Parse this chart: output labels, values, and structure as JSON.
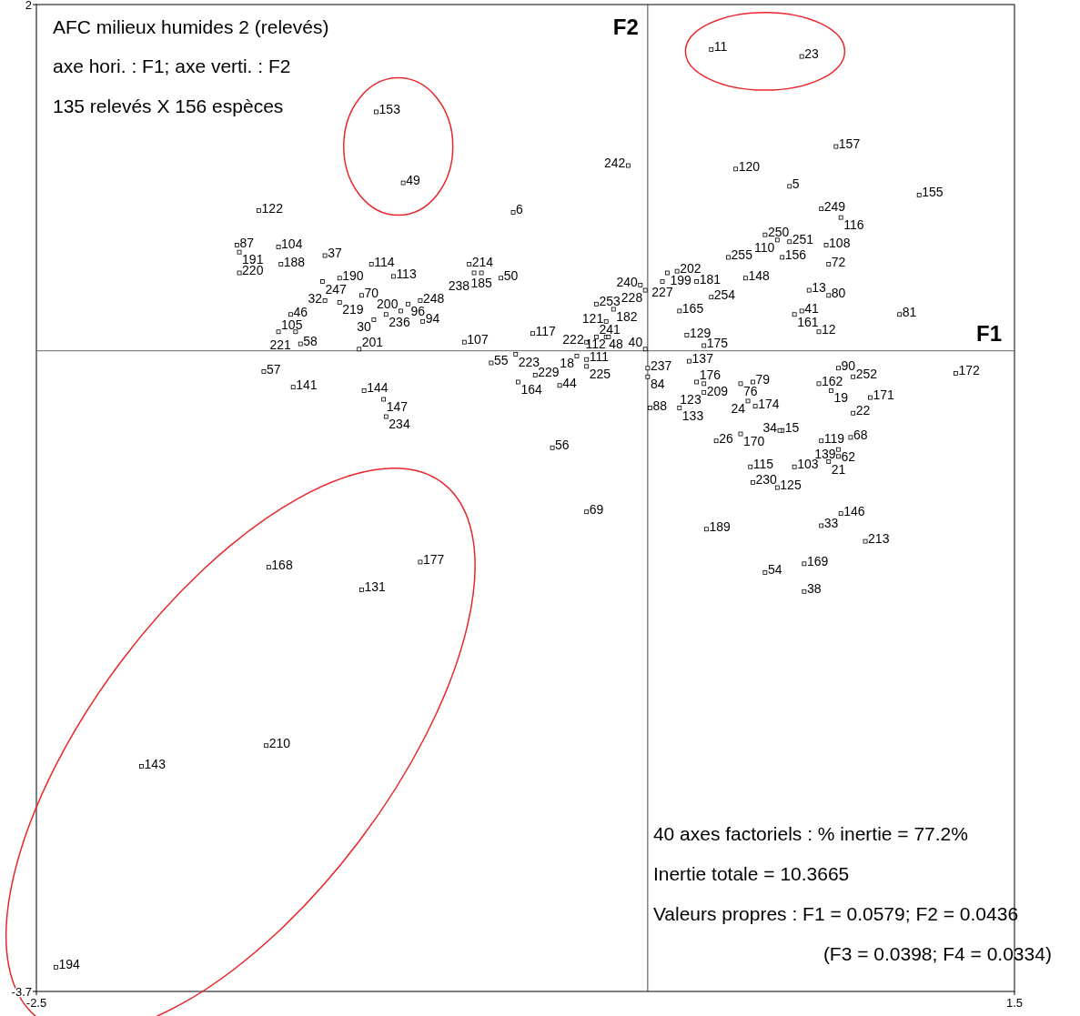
{
  "chart_data": {
    "type": "scatter",
    "title": "AFC milieux humides 2 (relevés)",
    "subtitle": "axe hori. : F1; axe verti. : F2",
    "xlim": [
      -2.5,
      1.5
    ],
    "ylim": [
      -3.7,
      2
    ],
    "xticks": [
      -2.5,
      1.5
    ],
    "yticks": [
      -3.7,
      2
    ],
    "marker": "square",
    "grid": false,
    "ref_lines": [
      {
        "axis": "x",
        "value": 0,
        "color": "#444444"
      },
      {
        "axis": "y",
        "value": 0,
        "color": "#666666"
      }
    ],
    "series": [
      {
        "color": "#000000",
        "x": [
          -1.11,
          -1.0,
          -1.59,
          -0.55,
          -0.08,
          0.26,
          0.63,
          0.77,
          0.36,
          0.58,
          1.11,
          0.71,
          0.79,
          0.48,
          0.53,
          0.58,
          0.73,
          0.33,
          0.55,
          0.74,
          0.4,
          0.08,
          0.12,
          0.06,
          0.2,
          -0.01,
          -0.03,
          0.26,
          0.13,
          0.66,
          0.74,
          0.63,
          0.6,
          0.7,
          1.03,
          0.16,
          0.23,
          -0.01,
          -0.21,
          -0.14,
          -0.21,
          -0.17,
          -0.25,
          -0.17,
          -0.16,
          -0.29,
          -0.25,
          -0.25,
          -0.47,
          -0.54,
          -0.46,
          -0.36,
          -0.64,
          -0.53,
          -0.75,
          -0.73,
          -0.68,
          -0.71,
          -0.6,
          -1.68,
          -1.67,
          -1.67,
          -1.51,
          -1.5,
          -1.32,
          -1.33,
          -1.26,
          -1.13,
          -1.04,
          -1.32,
          -1.17,
          -1.26,
          -0.98,
          -0.93,
          -1.01,
          -1.07,
          -1.12,
          -0.92,
          -1.46,
          -1.51,
          -1.44,
          -1.42,
          -1.18,
          -1.57,
          -1.45,
          -1.16,
          -1.08,
          -1.07,
          -0.39,
          -0.25,
          -1.55,
          -1.17,
          -0.93,
          -1.56,
          -2.07,
          -2.42,
          0.0,
          0.0,
          0.17,
          0.2,
          0.23,
          0.23,
          0.38,
          0.43,
          0.41,
          0.44,
          0.01,
          0.13,
          0.55,
          0.54,
          0.28,
          0.38,
          0.42,
          0.43,
          0.6,
          0.53,
          0.71,
          0.74,
          0.78,
          0.78,
          0.83,
          0.78,
          0.7,
          0.84,
          0.75,
          0.91,
          0.84,
          0.79,
          0.71,
          0.89,
          0.24,
          0.48,
          0.64,
          0.64,
          1.26
        ],
        "values": [
          1.38,
          0.97,
          0.81,
          0.8,
          1.07,
          1.74,
          1.7,
          1.18,
          1.05,
          0.95,
          0.9,
          0.82,
          0.77,
          0.67,
          0.64,
          0.63,
          0.61,
          0.54,
          0.54,
          0.5,
          0.42,
          0.45,
          0.46,
          0.4,
          0.4,
          0.35,
          0.38,
          0.31,
          0.23,
          0.35,
          0.32,
          0.23,
          0.21,
          0.11,
          0.21,
          0.09,
          0.03,
          0.01,
          0.27,
          0.24,
          0.08,
          0.17,
          0.05,
          0.08,
          0.08,
          -0.03,
          -0.05,
          -0.09,
          0.1,
          -0.02,
          -0.14,
          -0.2,
          -0.07,
          -0.18,
          0.05,
          0.5,
          0.45,
          0.45,
          0.42,
          0.61,
          0.57,
          0.45,
          0.6,
          0.5,
          0.55,
          0.4,
          0.42,
          0.5,
          0.43,
          0.29,
          0.32,
          0.28,
          0.27,
          0.29,
          0.23,
          0.21,
          0.18,
          0.17,
          0.21,
          0.11,
          0.11,
          0.04,
          0.01,
          -0.12,
          -0.21,
          -0.23,
          -0.28,
          -0.38,
          -0.56,
          -0.93,
          -1.25,
          -1.38,
          -1.22,
          -2.28,
          -2.4,
          -3.56,
          -0.1,
          -0.15,
          -0.06,
          -0.18,
          -0.19,
          -0.24,
          -0.19,
          -0.18,
          -0.29,
          -0.32,
          -0.33,
          -0.33,
          -0.46,
          -0.46,
          -0.52,
          -0.48,
          -0.67,
          -0.76,
          -0.67,
          -0.79,
          -0.52,
          -0.64,
          -0.57,
          -0.61,
          -0.5,
          -0.1,
          -0.19,
          -0.15,
          -0.23,
          -0.27,
          -0.36,
          -0.94,
          -1.01,
          -1.1,
          -1.03,
          -1.28,
          -1.23,
          -1.39,
          -0.13
        ]
      }
    ],
    "annotations": [
      "135 relevés X 156 espèces",
      "40 axes factoriels : % inertie = 77.2%",
      "Inertie totale = 10.3665",
      "Valeurs propres : F1 = 0.0579; F2 = 0.0436",
      "(F3 = 0.0398; F4 = 0.0334)",
      "F2",
      "F1",
      {
        "text": "153",
        "x": -1.11,
        "y": 1.38
      },
      {
        "text": "49",
        "x": -1.0,
        "y": 0.97
      },
      {
        "text": "122",
        "x": -1.59,
        "y": 0.81
      },
      {
        "text": "6",
        "x": -0.55,
        "y": 0.8
      },
      {
        "text": "242",
        "x": -0.08,
        "y": 1.07
      },
      {
        "text": "11",
        "x": 0.26,
        "y": 1.74
      },
      {
        "text": "23",
        "x": 0.63,
        "y": 1.7
      },
      {
        "text": "157",
        "x": 0.77,
        "y": 1.18
      },
      {
        "text": "120",
        "x": 0.36,
        "y": 1.05
      },
      {
        "text": "5",
        "x": 0.58,
        "y": 0.95
      },
      {
        "text": "155",
        "x": 1.11,
        "y": 0.9
      },
      {
        "text": "249",
        "x": 0.71,
        "y": 0.82
      },
      {
        "text": "116",
        "x": 0.79,
        "y": 0.77
      },
      {
        "text": "250",
        "x": 0.48,
        "y": 0.67
      },
      {
        "text": "110",
        "x": 0.53,
        "y": 0.64
      },
      {
        "text": "251",
        "x": 0.58,
        "y": 0.63
      },
      {
        "text": "108",
        "x": 0.73,
        "y": 0.61
      },
      {
        "text": "255",
        "x": 0.33,
        "y": 0.54
      },
      {
        "text": "156",
        "x": 0.55,
        "y": 0.54
      },
      {
        "text": "72",
        "x": 0.74,
        "y": 0.5
      },
      {
        "text": "148",
        "x": 0.4,
        "y": 0.42
      },
      {
        "text": "199",
        "x": 0.08,
        "y": 0.45
      },
      {
        "text": "202",
        "x": 0.12,
        "y": 0.46
      },
      {
        "text": "227",
        "x": 0.06,
        "y": 0.4
      },
      {
        "text": "181",
        "x": 0.2,
        "y": 0.4
      },
      {
        "text": "228",
        "x": -0.01,
        "y": 0.35
      },
      {
        "text": "240",
        "x": -0.03,
        "y": 0.38
      },
      {
        "text": "254",
        "x": 0.26,
        "y": 0.31
      },
      {
        "text": "165",
        "x": 0.13,
        "y": 0.23
      },
      {
        "text": "13",
        "x": 0.66,
        "y": 0.35
      },
      {
        "text": "80",
        "x": 0.74,
        "y": 0.32
      },
      {
        "text": "41",
        "x": 0.63,
        "y": 0.23
      },
      {
        "text": "161",
        "x": 0.6,
        "y": 0.21
      },
      {
        "text": "12",
        "x": 0.7,
        "y": 0.11
      },
      {
        "text": "81",
        "x": 1.03,
        "y": 0.21
      },
      {
        "text": "129",
        "x": 0.16,
        "y": 0.09
      },
      {
        "text": "175",
        "x": 0.23,
        "y": 0.03
      },
      {
        "text": "40",
        "x": -0.01,
        "y": 0.01
      },
      {
        "text": "253",
        "x": -0.21,
        "y": 0.27
      },
      {
        "text": "182",
        "x": -0.14,
        "y": 0.24
      },
      {
        "text": "241",
        "x": -0.21,
        "y": 0.08
      },
      {
        "text": "121",
        "x": -0.17,
        "y": 0.17
      },
      {
        "text": "222",
        "x": -0.25,
        "y": 0.05
      },
      {
        "text": "48",
        "x": -0.17,
        "y": 0.08
      },
      {
        "text": "112",
        "x": -0.16,
        "y": 0.08
      },
      {
        "text": "18",
        "x": -0.29,
        "y": -0.03
      },
      {
        "text": "111",
        "x": -0.25,
        "y": -0.05
      },
      {
        "text": "225",
        "x": -0.25,
        "y": -0.09
      },
      {
        "text": "117",
        "x": -0.47,
        "y": 0.1
      },
      {
        "text": "223",
        "x": -0.54,
        "y": -0.02
      },
      {
        "text": "229",
        "x": -0.46,
        "y": -0.14
      },
      {
        "text": "44",
        "x": -0.36,
        "y": -0.2
      },
      {
        "text": "55",
        "x": -0.64,
        "y": -0.07
      },
      {
        "text": "164",
        "x": -0.53,
        "y": -0.18
      },
      {
        "text": "107",
        "x": -0.75,
        "y": 0.05
      },
      {
        "text": "214",
        "x": -0.73,
        "y": 0.5
      },
      {
        "text": "185",
        "x": -0.68,
        "y": 0.45
      },
      {
        "text": "238",
        "x": -0.71,
        "y": 0.45
      },
      {
        "text": "50",
        "x": -0.6,
        "y": 0.42
      },
      {
        "text": "87",
        "x": -1.68,
        "y": 0.61
      },
      {
        "text": "191",
        "x": -1.67,
        "y": 0.57
      },
      {
        "text": "220",
        "x": -1.67,
        "y": 0.45
      },
      {
        "text": "104",
        "x": -1.51,
        "y": 0.6
      },
      {
        "text": "188",
        "x": -1.5,
        "y": 0.5
      },
      {
        "text": "37",
        "x": -1.32,
        "y": 0.55
      },
      {
        "text": "247",
        "x": -1.33,
        "y": 0.4
      },
      {
        "text": "190",
        "x": -1.26,
        "y": 0.42
      },
      {
        "text": "114",
        "x": -1.13,
        "y": 0.5
      },
      {
        "text": "113",
        "x": -1.04,
        "y": 0.43
      },
      {
        "text": "32",
        "x": -1.32,
        "y": 0.29
      },
      {
        "text": "70",
        "x": -1.17,
        "y": 0.32
      },
      {
        "text": "219",
        "x": -1.26,
        "y": 0.28
      },
      {
        "text": "96",
        "x": -0.98,
        "y": 0.27
      },
      {
        "text": "248",
        "x": -0.93,
        "y": 0.29
      },
      {
        "text": "200",
        "x": -1.01,
        "y": 0.23
      },
      {
        "text": "236",
        "x": -1.07,
        "y": 0.21
      },
      {
        "text": "30",
        "x": -1.12,
        "y": 0.18
      },
      {
        "text": "94",
        "x": -0.92,
        "y": 0.17
      },
      {
        "text": "46",
        "x": -1.46,
        "y": 0.21
      },
      {
        "text": "105",
        "x": -1.51,
        "y": 0.11
      },
      {
        "text": "221",
        "x": -1.44,
        "y": 0.11
      },
      {
        "text": "58",
        "x": -1.42,
        "y": 0.04
      },
      {
        "text": "201",
        "x": -1.18,
        "y": 0.01
      },
      {
        "text": "57",
        "x": -1.57,
        "y": -0.12
      },
      {
        "text": "141",
        "x": -1.45,
        "y": -0.21
      },
      {
        "text": "144",
        "x": -1.16,
        "y": -0.23
      },
      {
        "text": "147",
        "x": -1.08,
        "y": -0.28
      },
      {
        "text": "234",
        "x": -1.07,
        "y": -0.38
      },
      {
        "text": "56",
        "x": -0.39,
        "y": -0.56
      },
      {
        "text": "69",
        "x": -0.25,
        "y": -0.93
      },
      {
        "text": "168",
        "x": -1.55,
        "y": -1.25
      },
      {
        "text": "131",
        "x": -1.17,
        "y": -1.38
      },
      {
        "text": "177",
        "x": -0.93,
        "y": -1.22
      },
      {
        "text": "210",
        "x": -1.56,
        "y": -2.28
      },
      {
        "text": "143",
        "x": -2.07,
        "y": -2.4
      },
      {
        "text": "194",
        "x": -2.42,
        "y": -3.56
      },
      {
        "text": "237",
        "x": 0.0,
        "y": -0.1
      },
      {
        "text": "84",
        "x": 0.0,
        "y": -0.15
      },
      {
        "text": "137",
        "x": 0.17,
        "y": -0.06
      },
      {
        "text": "176",
        "x": 0.2,
        "y": -0.18
      },
      {
        "text": "209",
        "x": 0.23,
        "y": -0.19
      },
      {
        "text": "123",
        "x": 0.23,
        "y": -0.24
      },
      {
        "text": "76",
        "x": 0.38,
        "y": -0.19
      },
      {
        "text": "79",
        "x": 0.43,
        "y": -0.18
      },
      {
        "text": "24",
        "x": 0.41,
        "y": -0.29
      },
      {
        "text": "174",
        "x": 0.44,
        "y": -0.32
      },
      {
        "text": "88",
        "x": 0.01,
        "y": -0.33
      },
      {
        "text": "133",
        "x": 0.13,
        "y": -0.33
      },
      {
        "text": "15",
        "x": 0.55,
        "y": -0.46
      },
      {
        "text": "34",
        "x": 0.54,
        "y": -0.46
      },
      {
        "text": "26",
        "x": 0.28,
        "y": -0.52
      },
      {
        "text": "170",
        "x": 0.38,
        "y": -0.48
      },
      {
        "text": "115",
        "x": 0.42,
        "y": -0.67
      },
      {
        "text": "230",
        "x": 0.43,
        "y": -0.76
      },
      {
        "text": "103",
        "x": 0.6,
        "y": -0.67
      },
      {
        "text": "125",
        "x": 0.53,
        "y": -0.79
      },
      {
        "text": "119",
        "x": 0.71,
        "y": -0.52
      },
      {
        "text": "21",
        "x": 0.74,
        "y": -0.64
      },
      {
        "text": "62",
        "x": 0.78,
        "y": -0.57
      },
      {
        "text": "139",
        "x": 0.78,
        "y": -0.61
      },
      {
        "text": "68",
        "x": 0.83,
        "y": -0.5
      },
      {
        "text": "90",
        "x": 0.78,
        "y": -0.1
      },
      {
        "text": "162",
        "x": 0.7,
        "y": -0.19
      },
      {
        "text": "252",
        "x": 0.84,
        "y": -0.15
      },
      {
        "text": "19",
        "x": 0.75,
        "y": -0.23
      },
      {
        "text": "171",
        "x": 0.91,
        "y": -0.27
      },
      {
        "text": "22",
        "x": 0.84,
        "y": -0.36
      },
      {
        "text": "146",
        "x": 0.79,
        "y": -0.94
      },
      {
        "text": "33",
        "x": 0.71,
        "y": -1.01
      },
      {
        "text": "213",
        "x": 0.89,
        "y": -1.1
      },
      {
        "text": "189",
        "x": 0.24,
        "y": -1.03
      },
      {
        "text": "54",
        "x": 0.48,
        "y": -1.28
      },
      {
        "text": "169",
        "x": 0.64,
        "y": -1.23
      },
      {
        "text": "38",
        "x": 0.64,
        "y": -1.39
      },
      {
        "text": "172",
        "x": 1.26,
        "y": -0.13
      }
    ]
  }
}
